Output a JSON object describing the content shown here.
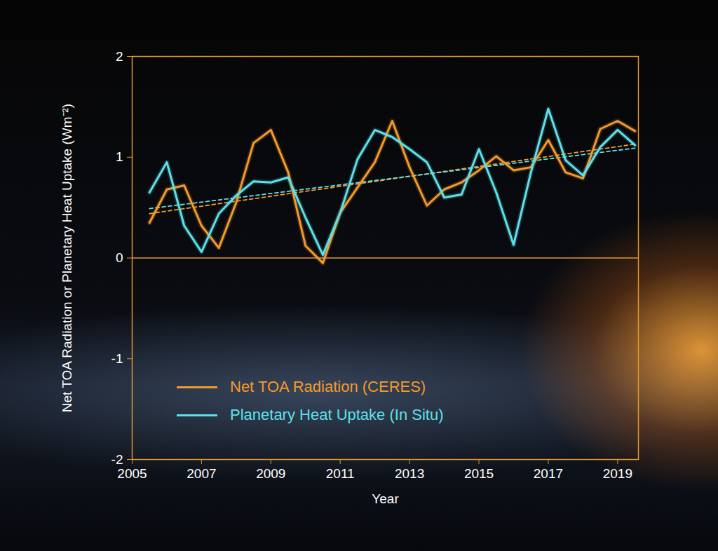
{
  "chart_data": {
    "type": "line",
    "x_label": "Year",
    "y_label": "Net TOA Radiation or Planetary Heat Uptake (Wm⁻²)",
    "x": [
      2005.5,
      2006,
      2006.5,
      2007,
      2007.5,
      2008,
      2008.5,
      2009,
      2009.5,
      2010,
      2010.5,
      2011,
      2011.5,
      2012,
      2012.5,
      2013,
      2013.5,
      2014,
      2014.5,
      2015,
      2015.5,
      2016,
      2016.5,
      2017,
      2017.5,
      2018,
      2018.5,
      2019,
      2019.5
    ],
    "series": [
      {
        "name": "Net TOA Radiation (CERES)",
        "color": "#f39a2c",
        "line_style": "solid",
        "values": [
          0.35,
          0.68,
          0.72,
          0.32,
          0.1,
          0.55,
          1.14,
          1.27,
          0.85,
          0.12,
          -0.05,
          0.45,
          0.7,
          0.95,
          1.36,
          0.9,
          0.52,
          0.68,
          0.75,
          0.87,
          1.01,
          0.87,
          0.9,
          1.17,
          0.85,
          0.79,
          1.28,
          1.36,
          1.26
        ]
      },
      {
        "name": "Planetary Heat Uptake (In Situ)",
        "color": "#5fe0e8",
        "line_style": "solid",
        "values": [
          0.65,
          0.95,
          0.32,
          0.06,
          0.44,
          0.62,
          0.76,
          0.75,
          0.8,
          0.4,
          0.03,
          0.45,
          0.98,
          1.27,
          1.2,
          1.08,
          0.95,
          0.6,
          0.63,
          1.08,
          0.65,
          0.13,
          0.85,
          1.48,
          0.97,
          0.82,
          1.1,
          1.27,
          1.12
        ]
      }
    ],
    "trend_lines": [
      {
        "color": "#f39a2c",
        "line_style": "dashed",
        "x": [
          2005.5,
          2019.5
        ],
        "values": [
          0.44,
          1.13
        ]
      },
      {
        "color": "#5fe0e8",
        "line_style": "dashed",
        "x": [
          2005.5,
          2019.5
        ],
        "values": [
          0.49,
          1.09
        ]
      }
    ],
    "reference_line": 0,
    "xlim": [
      2005,
      2019.6
    ],
    "xticks": [
      2005,
      2007,
      2009,
      2011,
      2013,
      2015,
      2017,
      2019
    ],
    "ylim": [
      -2,
      2
    ],
    "yticks": [
      -2,
      -1,
      0,
      1,
      2
    ],
    "grid": false,
    "legend": "lower left"
  }
}
